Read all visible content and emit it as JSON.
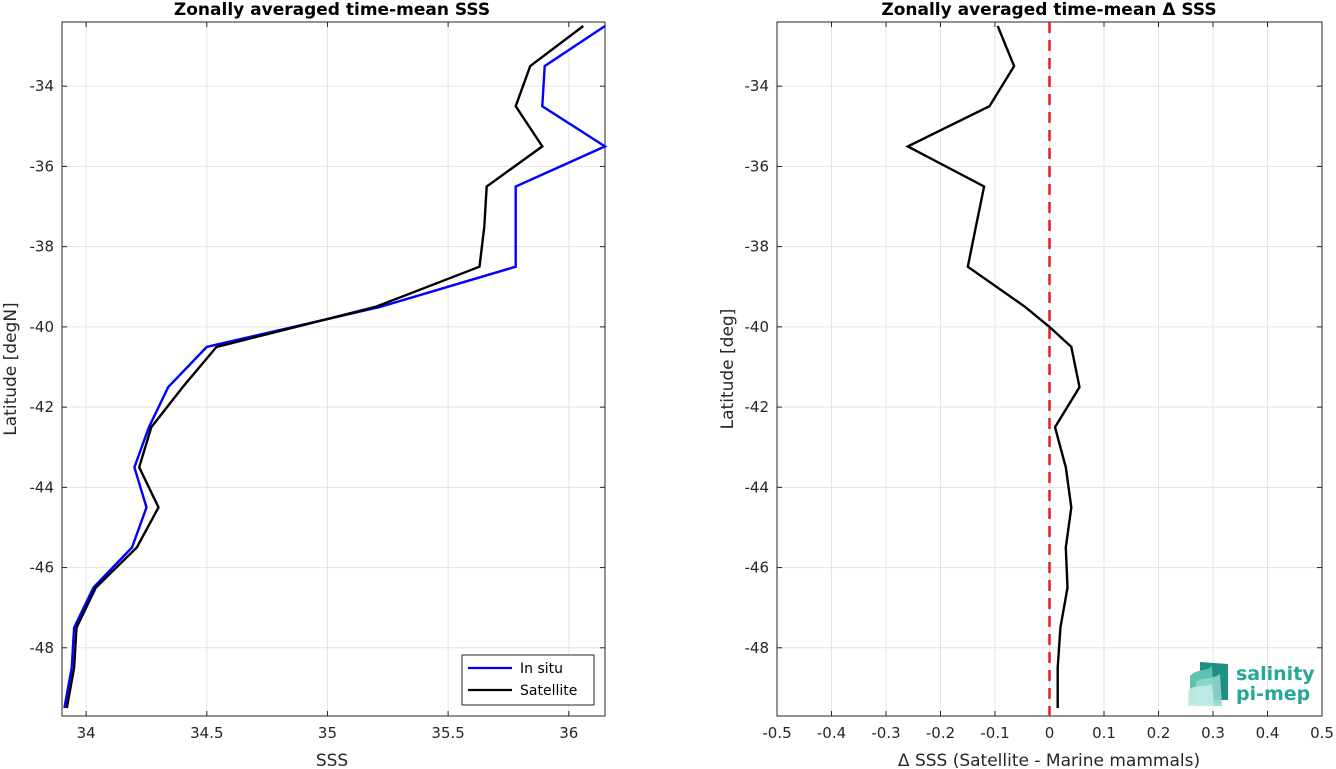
{
  "chart_data": [
    {
      "type": "line",
      "title": "Zonally averaged time-mean SSS",
      "xlabel": "SSS",
      "ylabel": "Latitude [degN]",
      "xlim": [
        33.9,
        36.15
      ],
      "ylim": [
        -49.7,
        -32.4
      ],
      "xticks": [
        34,
        34.5,
        35,
        35.5,
        36
      ],
      "xtick_labels": [
        "34",
        "34.5",
        "35",
        "35.5",
        "36"
      ],
      "yticks": [
        -48,
        -46,
        -44,
        -42,
        -40,
        -38,
        -36,
        -34
      ],
      "ytick_labels": [
        "-48",
        "-46",
        "-44",
        "-42",
        "-40",
        "-38",
        "-36",
        "-34"
      ],
      "grid": true,
      "legend_position": "bottom-right",
      "series": [
        {
          "name": "In situ",
          "color": "#0000ff",
          "x": [
            36.15,
            35.9,
            35.89,
            36.15,
            35.78,
            35.78,
            35.22,
            34.5,
            34.34,
            34.26,
            34.2,
            34.25,
            34.19,
            34.03,
            33.95,
            33.94,
            33.91
          ],
          "y": [
            -32.5,
            -33.5,
            -34.5,
            -35.5,
            -36.5,
            -38.5,
            -39.5,
            -40.5,
            -41.5,
            -42.5,
            -43.5,
            -44.5,
            -45.5,
            -46.5,
            -47.5,
            -48.5,
            -49.5
          ]
        },
        {
          "name": "Satellite",
          "color": "#000000",
          "x": [
            36.06,
            35.84,
            35.78,
            35.89,
            35.66,
            35.65,
            35.63,
            35.2,
            34.54,
            34.4,
            34.27,
            34.22,
            34.3,
            34.21,
            34.04,
            33.96,
            33.95,
            33.92
          ],
          "y": [
            -32.5,
            -33.5,
            -34.5,
            -35.5,
            -36.5,
            -37.5,
            -38.5,
            -39.5,
            -40.5,
            -41.5,
            -42.5,
            -43.5,
            -44.5,
            -45.5,
            -46.5,
            -47.5,
            -48.5,
            -49.5
          ]
        }
      ]
    },
    {
      "type": "line",
      "title": "Zonally averaged time-mean Δ SSS",
      "xlabel": "Δ SSS (Satellite - Marine mammals)",
      "ylabel": "Latitude [deg]",
      "xlim": [
        -0.5,
        0.5
      ],
      "ylim": [
        -49.7,
        -32.4
      ],
      "xticks": [
        -0.5,
        -0.4,
        -0.3,
        -0.2,
        -0.1,
        0,
        0.1,
        0.2,
        0.3,
        0.4,
        0.5
      ],
      "xtick_labels": [
        "-0.5",
        "-0.4",
        "-0.3",
        "-0.2",
        "-0.1",
        "0",
        "0.1",
        "0.2",
        "0.3",
        "0.4",
        "0.5"
      ],
      "yticks": [
        -48,
        -46,
        -44,
        -42,
        -40,
        -38,
        -36,
        -34
      ],
      "ytick_labels": [
        "-48",
        "-46",
        "-44",
        "-42",
        "-40",
        "-38",
        "-36",
        "-34"
      ],
      "grid": true,
      "reference_line": {
        "x": 0,
        "color": "#e02020",
        "style": "dashed"
      },
      "series": [
        {
          "color": "#000000",
          "x": [
            -0.095,
            -0.065,
            -0.11,
            -0.26,
            -0.12,
            -0.135,
            -0.15,
            -0.045,
            0.0,
            0.04,
            0.055,
            0.01,
            0.03,
            0.04,
            0.03,
            0.033,
            0.02,
            0.015,
            0.015
          ],
          "y": [
            -32.5,
            -33.5,
            -34.5,
            -35.5,
            -36.5,
            -37.5,
            -38.5,
            -39.5,
            -40.0,
            -40.5,
            -41.5,
            -42.5,
            -43.5,
            -44.5,
            -45.5,
            -46.5,
            -47.5,
            -48.5,
            -49.5
          ]
        }
      ]
    }
  ],
  "logo": {
    "line1": "salinity",
    "line2": "pi-mep",
    "color": "#25a79a"
  }
}
